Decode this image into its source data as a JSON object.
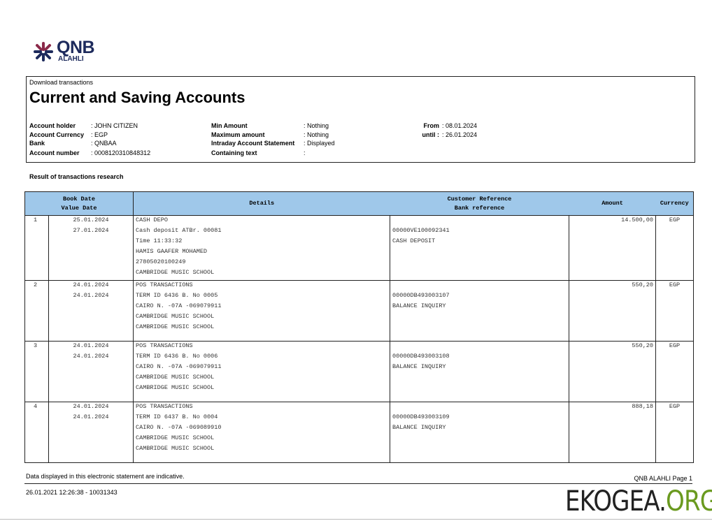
{
  "logo": {
    "name": "QNB",
    "sub": "ALAHLI"
  },
  "header": {
    "breadcrumb": "Download transactions",
    "title": "Current and Saving Accounts"
  },
  "info": {
    "left": [
      {
        "label": "Account holder",
        "value": ": JOHN CITIZEN"
      },
      {
        "label": "Account Currency",
        "value": ": EGP"
      },
      {
        "label": "Bank",
        "value": ": QNBAA"
      },
      {
        "label": "Account number",
        "value": ": 0008120310848312"
      }
    ],
    "mid": [
      {
        "label": "Min Amount",
        "value": ": Nothing"
      },
      {
        "label": "Maximum amount",
        "value": ": Nothing"
      },
      {
        "label": "Intraday Account Statement",
        "value": ": Displayed"
      },
      {
        "label": "Containing text",
        "value": ":"
      }
    ],
    "right": [
      {
        "label": "From",
        "value": ": 08.01.2024"
      },
      {
        "label": "until :",
        "value": ": 26.01.2024"
      }
    ]
  },
  "result_label": "Result of transactions research",
  "table": {
    "headers": {
      "book_date": "Book Date",
      "value_date": "Value Date",
      "details": "Details",
      "customer_ref": "Customer Reference",
      "bank_ref": "Bank reference",
      "amount": "Amount",
      "currency": "Currency"
    },
    "rows": [
      {
        "no": "1",
        "book_date": "25.01.2024",
        "value_date": "27.01.2024",
        "details": [
          "CASH DEPO",
          "Cash deposit ATBr. 00081",
          "Time 11:33:32",
          "HAMIS GAAFER MOHAMED",
          "27805020100249",
          "CAMBRIDGE MUSIC SCHOOL"
        ],
        "refs": [
          "",
          "00000VE100092341",
          "CASH DEPOSIT"
        ],
        "amount": "14.500,00",
        "currency": "EGP"
      },
      {
        "no": "2",
        "book_date": "24.01.2024",
        "value_date": "24.01.2024",
        "details": [
          "POS TRANSACTIONS",
          "TERM ID 6436 B. No 0005",
          "CAIRO N. -07A  -069079911",
          "CAMBRIDGE MUSIC SCHOOL",
          "CAMBRIDGE MUSIC SCHOOL"
        ],
        "refs": [
          "",
          "00000DB493003107",
          "BALANCE INQUIRY"
        ],
        "amount": "550,20",
        "currency": "EGP"
      },
      {
        "no": "3",
        "book_date": "24.01.2024",
        "value_date": "24.01.2024",
        "details": [
          "POS TRANSACTIONS",
          "TERM ID 6436 B. No 0006",
          "CAIRO N. -07A  -069079911",
          "CAMBRIDGE MUSIC SCHOOL",
          "CAMBRIDGE MUSIC SCHOOL"
        ],
        "refs": [
          "",
          "00000DB493003108",
          "BALANCE INQUIRY"
        ],
        "amount": "550,20",
        "currency": "EGP"
      },
      {
        "no": "4",
        "book_date": "24.01.2024",
        "value_date": "24.01.2024",
        "details": [
          "POS TRANSACTIONS",
          "TERM ID 6437 B. No 0004",
          "CAIRO N. -07A  -069089910",
          "CAMBRIDGE MUSIC SCHOOL",
          "CAMBRIDGE MUSIC SCHOOL"
        ],
        "refs": [
          "",
          "00000DB493003109",
          "BALANCE INQUIRY"
        ],
        "amount": "888,18",
        "currency": "EGP"
      }
    ]
  },
  "footer": {
    "note": "Data displayed in this electronic statement are indicative.",
    "timestamp": "26.01.2021 12:26:38 - 10031343",
    "page": "QNB ALAHLI Page 1"
  },
  "watermark": {
    "main": "EKOGEA.",
    "tld": "ORG"
  },
  "colors": {
    "header_bg": "#9fc8ea",
    "brand": "#1d2a5c",
    "watermark_accent": "#6a9a1f"
  }
}
